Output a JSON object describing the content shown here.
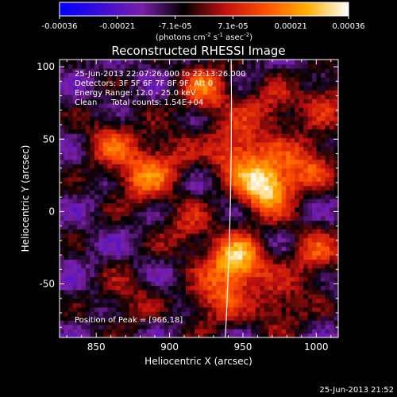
{
  "colorbar": {
    "ticks": [
      "-0.00036",
      "-0.00021",
      "-7.1e-05",
      "7.1e-05",
      "0.00021",
      "0.00036"
    ],
    "unit_main": "(photons cm",
    "unit_sup1": "-2",
    "unit_mid": " s",
    "unit_sup2": "-1",
    "unit_end": " asec",
    "unit_sup3": "-2",
    "unit_close": ")",
    "colors": [
      "#0000ff",
      "#3c0cd8",
      "#7a1fa8",
      "#000000",
      "#c01010",
      "#ff5000",
      "#ffb000",
      "#ffffff"
    ]
  },
  "chart_data": {
    "type": "heatmap",
    "title": "Reconstructed RHESSI Image",
    "xlabel": "Heliocentric X (arcsec)",
    "ylabel": "Heliocentric Y (arcsec)",
    "xlim": [
      825,
      1015
    ],
    "ylim": [
      -87,
      105
    ],
    "xticks": [
      "850",
      "900",
      "950",
      "1000"
    ],
    "xtick_values": [
      850,
      900,
      950,
      1000
    ],
    "yticks": [
      "100",
      "50",
      "0",
      "-50"
    ],
    "ytick_values": [
      100,
      50,
      0,
      -50
    ],
    "vmin": -0.00036,
    "vmax": 0.00036,
    "peak": {
      "x": 966,
      "y": 18
    },
    "limb": {
      "x_top": 942,
      "x_bottom": 938
    },
    "sources": [
      {
        "x": 966,
        "y": 18,
        "amplitude": 1.0
      },
      {
        "x": 946,
        "y": -35,
        "amplitude": 0.9
      },
      {
        "x": 945,
        "y": 42,
        "amplitude": 0.6
      },
      {
        "x": 925,
        "y": 85,
        "amplitude": 0.55
      },
      {
        "x": 880,
        "y": 22,
        "amplitude": 0.5
      },
      {
        "x": 860,
        "y": 48,
        "amplitude": 0.45
      },
      {
        "x": 898,
        "y": 38,
        "amplitude": 0.35
      },
      {
        "x": 995,
        "y": 35,
        "amplitude": 0.5
      },
      {
        "x": 1000,
        "y": -30,
        "amplitude": 0.45
      },
      {
        "x": 975,
        "y": -65,
        "amplitude": 0.4
      },
      {
        "x": 912,
        "y": -12,
        "amplitude": 0.35
      },
      {
        "x": 930,
        "y": -62,
        "amplitude": 0.45
      },
      {
        "x": 968,
        "y": 70,
        "amplitude": 0.4
      },
      {
        "x": 1007,
        "y": 78,
        "amplitude": 0.35
      },
      {
        "x": 870,
        "y": -60,
        "amplitude": 0.3
      }
    ],
    "annotations": {
      "time_range": "25-Jun-2013 22:07:26.000 to 22:13:26.000",
      "detectors": "Detectors: 3F 5F 6F 7F 8F 9F, Att 0",
      "energy": "Energy Range: 12.0 - 25.0 keV",
      "clean": "Clean",
      "counts": "Total counts: 1.54E+04",
      "peak_text": "Position of Peak = [966,18]"
    }
  },
  "footer": {
    "timestamp": "25-Jun-2013 21:52"
  }
}
